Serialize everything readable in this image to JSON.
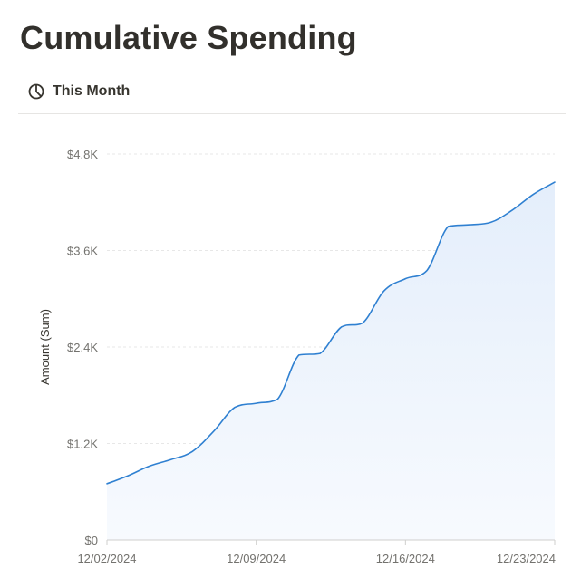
{
  "page": {
    "title": "Cumulative Spending"
  },
  "view_tab": {
    "label": "This Month",
    "icon": "pie-chart-icon"
  },
  "colors": {
    "line": "#2f80d1",
    "area_top": "#e4eefb",
    "grid": "#e7e7e7",
    "axis_text": "#73726e",
    "title_text": "#32302c"
  },
  "chart_data": {
    "type": "area",
    "ylabel": "Amount (Sum)",
    "y_ticks": [
      "$0",
      "$1.2K",
      "$2.4K",
      "$3.6K",
      "$4.8K"
    ],
    "y_tick_values": [
      0,
      1200,
      2400,
      3600,
      4800
    ],
    "x_ticks": [
      "12/02/2024",
      "12/09/2024",
      "12/16/2024",
      "12/23/2024"
    ],
    "ylim": [
      0,
      4800
    ],
    "grid": true,
    "x": [
      "12/02/2024",
      "12/03/2024",
      "12/04/2024",
      "12/05/2024",
      "12/06/2024",
      "12/07/2024",
      "12/08/2024",
      "12/09/2024",
      "12/10/2024",
      "12/11/2024",
      "12/12/2024",
      "12/13/2024",
      "12/14/2024",
      "12/15/2024",
      "12/16/2024",
      "12/17/2024",
      "12/18/2024",
      "12/19/2024",
      "12/20/2024",
      "12/21/2024",
      "12/22/2024",
      "12/23/2024"
    ],
    "values": [
      700,
      800,
      920,
      1000,
      1100,
      1350,
      1650,
      1700,
      1750,
      2300,
      2320,
      2650,
      2700,
      3100,
      3250,
      3350,
      3900,
      3920,
      3950,
      4100,
      4300,
      4450
    ]
  }
}
